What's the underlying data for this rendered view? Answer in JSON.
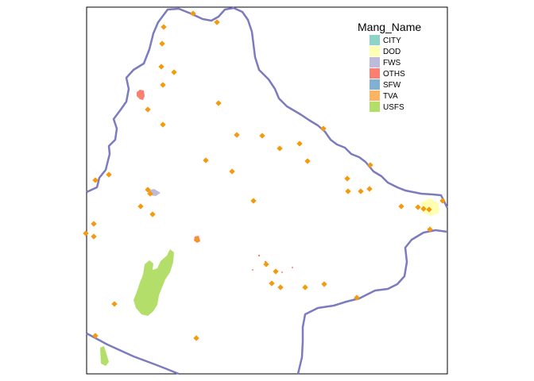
{
  "legend": {
    "title": "Mang_Name",
    "items": [
      {
        "label": "CITY",
        "color": "#8DD3C7"
      },
      {
        "label": "DOD",
        "color": "#FFFFB3"
      },
      {
        "label": "FWS",
        "color": "#BEBADA"
      },
      {
        "label": "OTHS",
        "color": "#FB8072"
      },
      {
        "label": "SFW",
        "color": "#80B1D3"
      },
      {
        "label": "TVA",
        "color": "#FDB462"
      },
      {
        "label": "USFS",
        "color": "#B3DE69"
      }
    ]
  },
  "colors": {
    "boundary": "#7B7BBF",
    "point": "#F39A0D",
    "background": "#ffffff",
    "frame": "#000000"
  }
}
